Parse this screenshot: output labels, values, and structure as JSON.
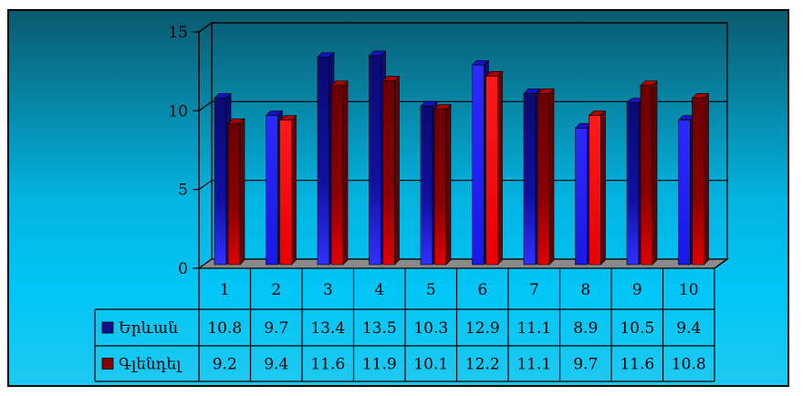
{
  "chart_data": {
    "type": "bar",
    "title": "",
    "xlabel": "",
    "ylabel": "",
    "ylim": [
      0,
      15
    ],
    "yticks": [
      0,
      5,
      10,
      15
    ],
    "categories": [
      "1",
      "2",
      "3",
      "4",
      "5",
      "6",
      "7",
      "8",
      "9",
      "10"
    ],
    "series": [
      {
        "name": "Երևան",
        "color": "#1a1aff",
        "values": [
          10.8,
          9.7,
          13.4,
          13.5,
          10.3,
          12.9,
          11.1,
          8.9,
          10.5,
          9.4
        ]
      },
      {
        "name": "Գլենդել",
        "color": "#e00000",
        "values": [
          9.2,
          9.4,
          11.6,
          11.9,
          10.1,
          12.2,
          11.1,
          9.7,
          11.6,
          10.8
        ]
      }
    ],
    "data_table": true,
    "grid": true,
    "legend": "data-table"
  }
}
